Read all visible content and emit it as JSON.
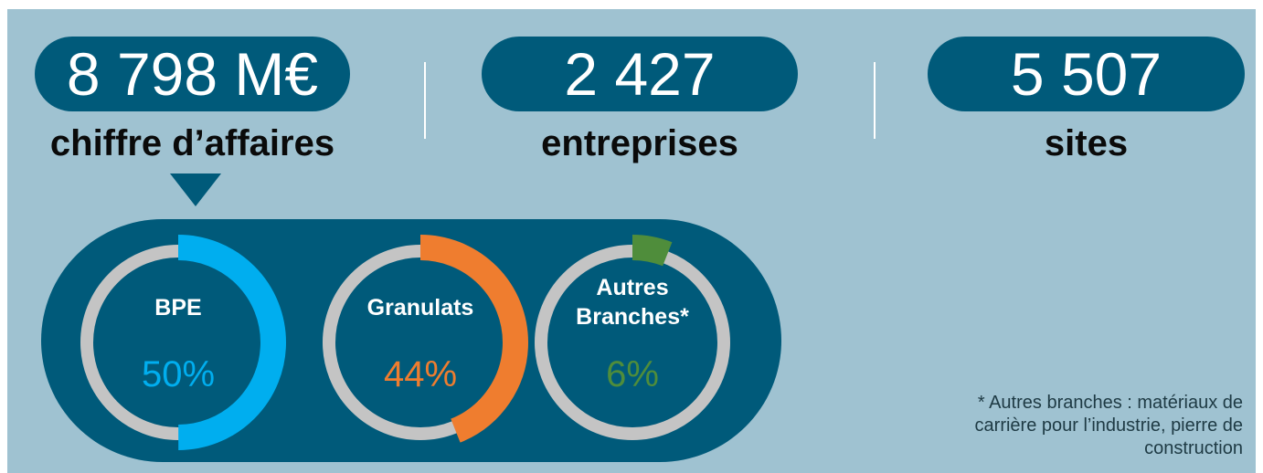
{
  "stats": [
    {
      "value": "8 798 M€",
      "label": "chiffre d’affaires"
    },
    {
      "value": "2 427",
      "label": "entreprises"
    },
    {
      "value": "5 507",
      "label": "sites"
    }
  ],
  "gauges": [
    {
      "name_lines": [
        "BPE"
      ],
      "value": 50,
      "value_label": "50%",
      "color": "#00aeef"
    },
    {
      "name_lines": [
        "Granulats"
      ],
      "value": 44,
      "value_label": "44%",
      "color": "#ef7d2f"
    },
    {
      "name_lines": [
        "Autres",
        "Branches*"
      ],
      "value": 6,
      "value_label": "6%",
      "color": "#4f8d3b"
    }
  ],
  "footnote_lines": [
    "* Autres branches : matériaux de",
    "carrière pour l’industrie, pierre de",
    "construction"
  ]
}
